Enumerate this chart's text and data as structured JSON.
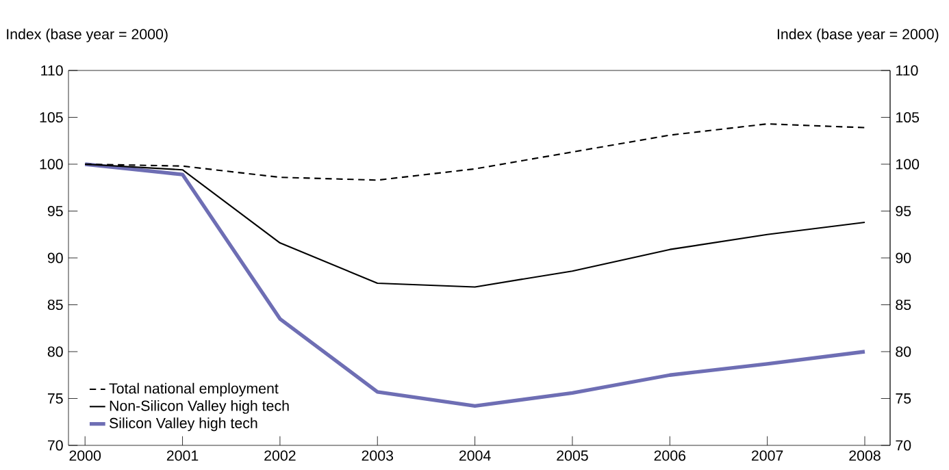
{
  "chart_data": {
    "type": "line",
    "ylabel": "Index (base year = 2000)",
    "y2label": "Index (base year = 2000)",
    "x": [
      2000,
      2001,
      2002,
      2003,
      2004,
      2005,
      2006,
      2007,
      2008
    ],
    "xlim": [
      1999.83,
      2008.26
    ],
    "xticks": [
      2000,
      2001,
      2002,
      2003,
      2004,
      2005,
      2006,
      2007,
      2008
    ],
    "ylim": [
      70,
      110
    ],
    "yticks": [
      70,
      75,
      80,
      85,
      90,
      95,
      100,
      105,
      110
    ],
    "y2lim": [
      70,
      110
    ],
    "y2ticks": [
      70,
      75,
      80,
      85,
      90,
      95,
      100,
      105,
      110
    ],
    "grid": false,
    "legend": "bottom left",
    "marker": "none",
    "series": [
      {
        "name": "Total national employment",
        "color": "#000000",
        "line_style": "dashed",
        "values": [
          100,
          99.8,
          98.6,
          98.3,
          99.5,
          101.3,
          103.1,
          104.3,
          103.9
        ]
      },
      {
        "name": "Non-Silicon Valley high tech",
        "color": "#000000",
        "line_style": "solid",
        "values": [
          100,
          99.4,
          91.6,
          87.3,
          86.9,
          88.6,
          90.9,
          92.5,
          93.8
        ]
      },
      {
        "name": "Silicon Valley high tech",
        "color": "#6e6eb4",
        "line_style": "solid",
        "values": [
          100,
          98.9,
          83.5,
          75.7,
          74.2,
          75.6,
          77.5,
          78.7,
          80.0
        ]
      }
    ]
  }
}
